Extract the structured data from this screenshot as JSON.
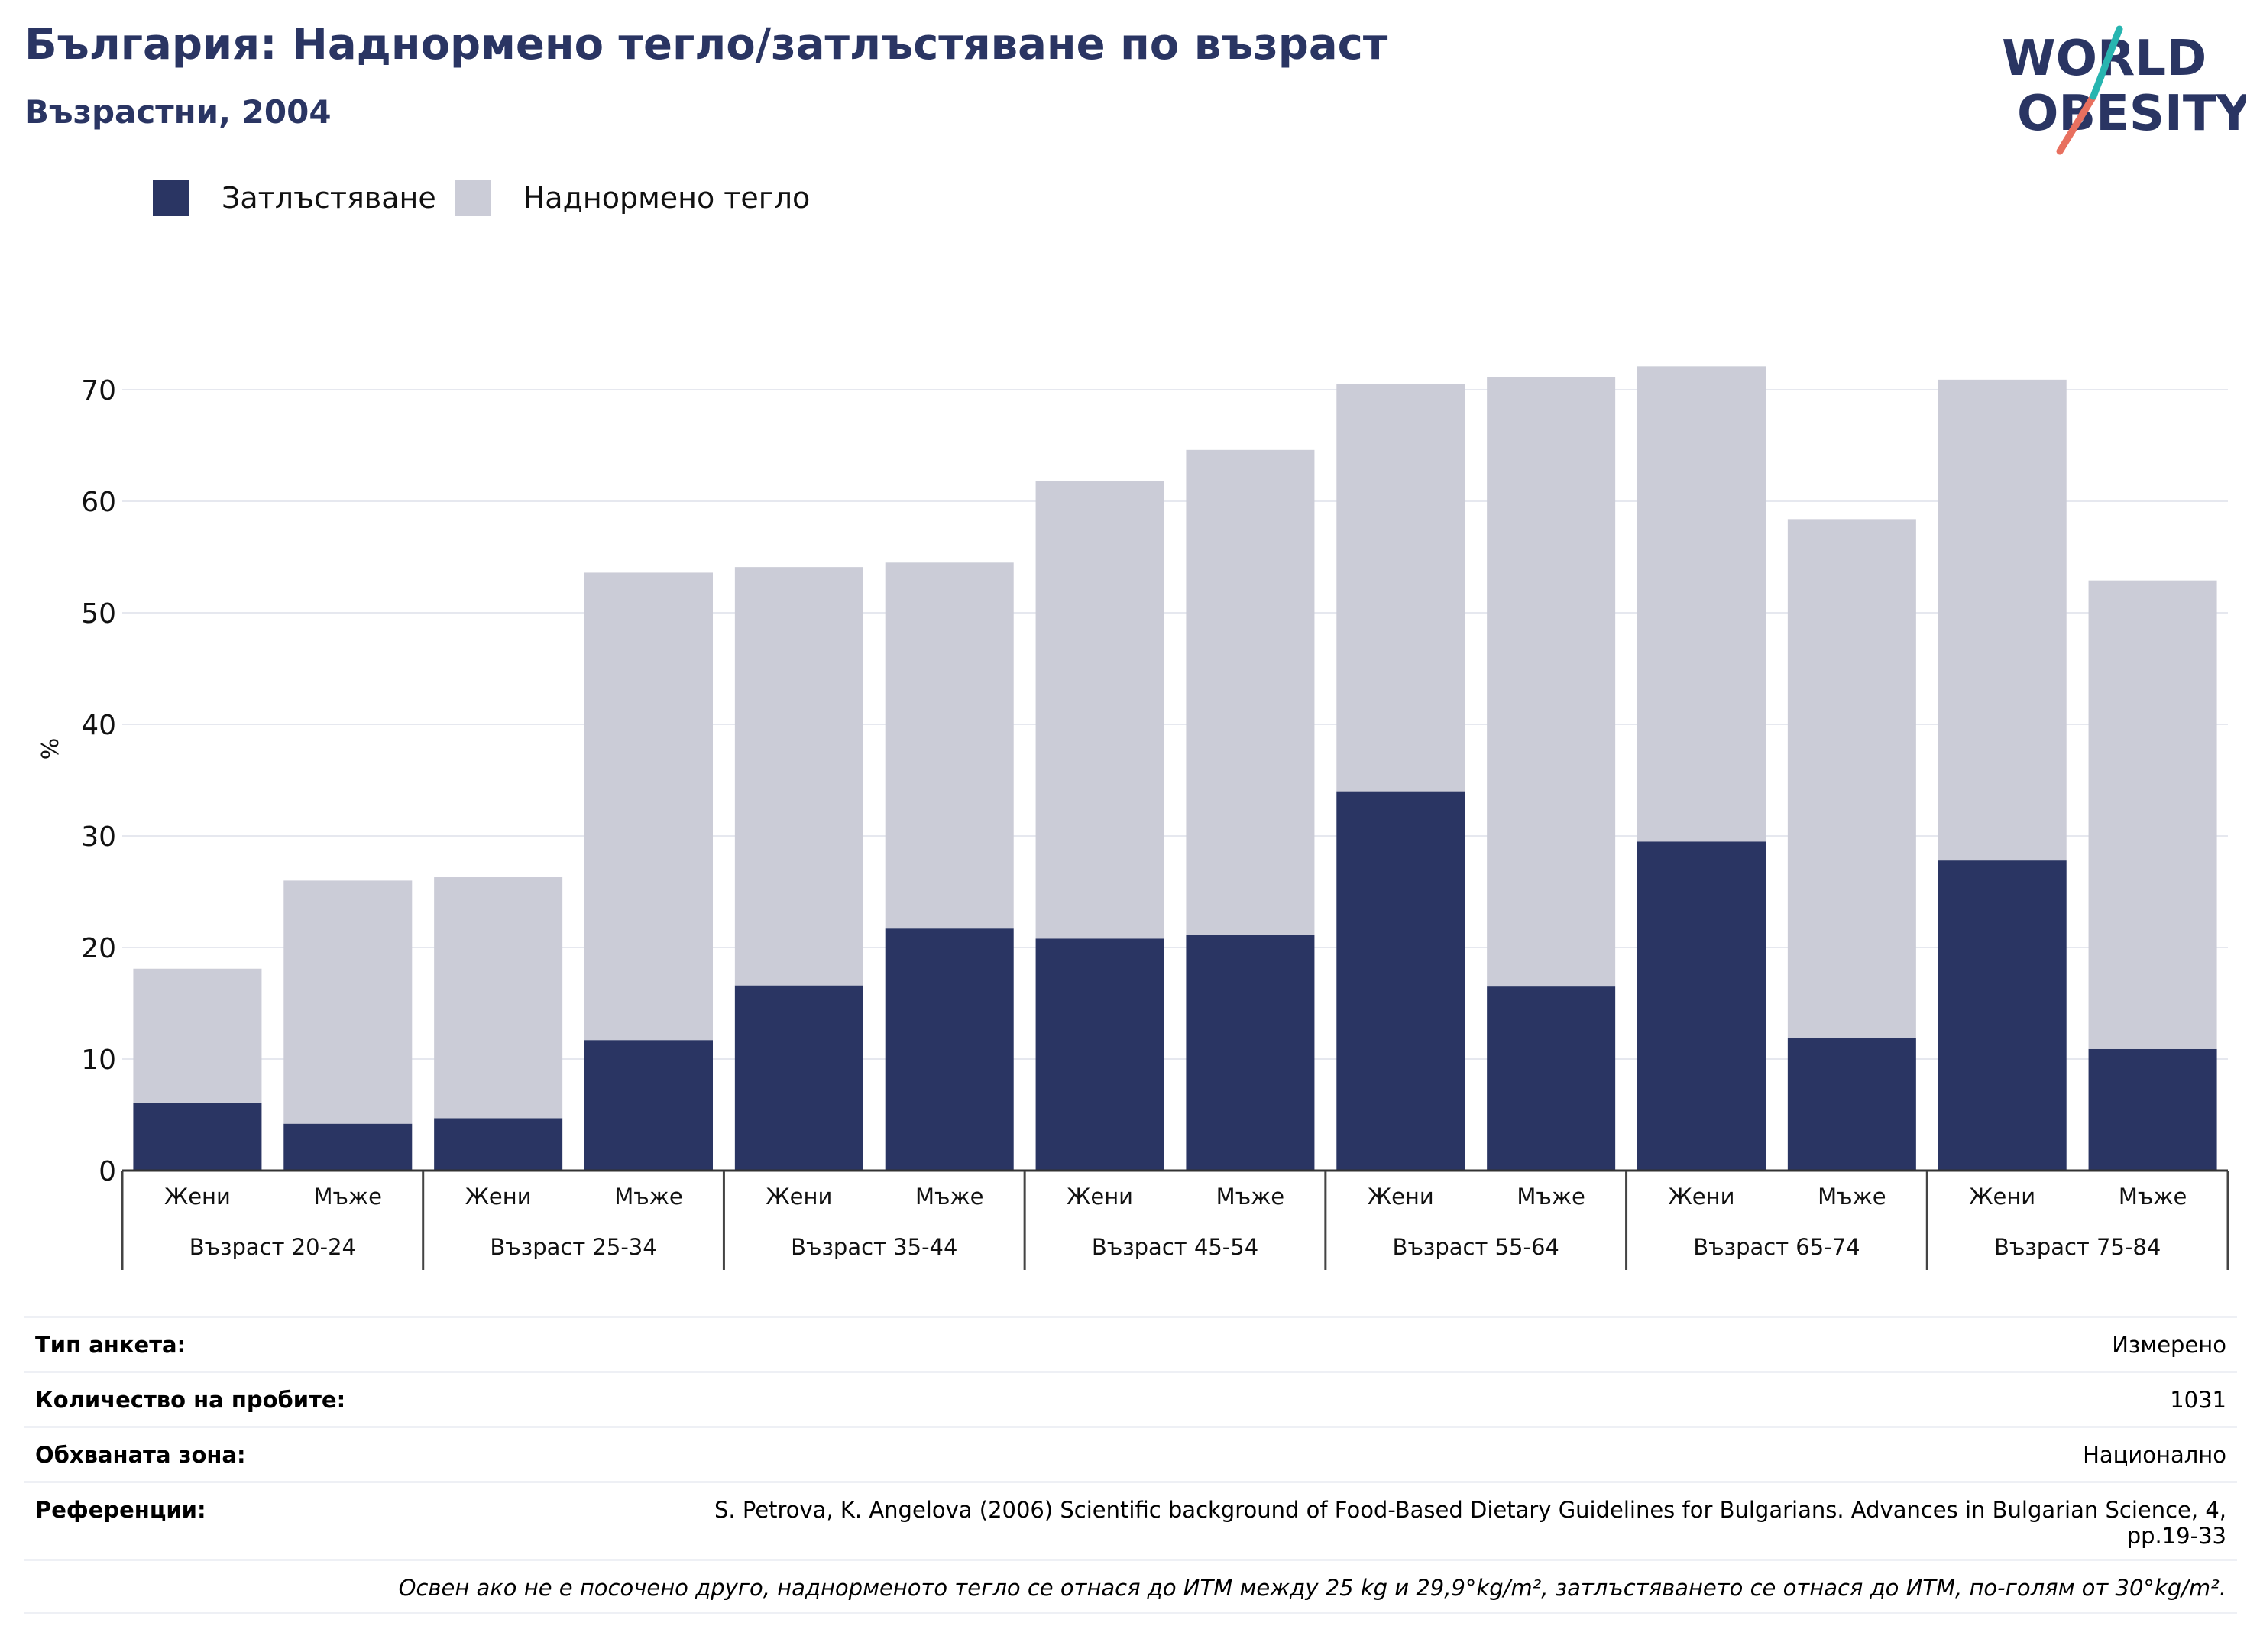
{
  "header": {
    "title": "България: Наднормено тегло/затлъстяване по възраст",
    "subtitle": "Възрастни, 2004"
  },
  "logo": {
    "line1": "WORLD",
    "line2": "OBESITY"
  },
  "colors": {
    "obesity": "#2a3563",
    "overweight": "#cbccd7",
    "title": "#2a3563",
    "grid": "#e6e8ef"
  },
  "legend": {
    "obesity_label": "Затлъстяване",
    "overweight_label": "Наднормено тегло"
  },
  "chart_data": {
    "type": "bar",
    "stacked": true,
    "ylabel": "%",
    "ylim": [
      0,
      75
    ],
    "yticks": [
      0,
      10,
      20,
      30,
      40,
      50,
      60,
      70
    ],
    "grid": true,
    "legend_position": "top-left",
    "groups": [
      "Възраст 20-24",
      "Възраст 25-34",
      "Възраст 35-44",
      "Възраст 45-54",
      "Възраст 55-64",
      "Възраст 65-74",
      "Възраст 75-84"
    ],
    "sexes": [
      "Жени",
      "Мъже"
    ],
    "series": [
      {
        "name": "Затлъстяване",
        "values": [
          6.1,
          4.2,
          4.7,
          11.7,
          16.6,
          21.7,
          20.8,
          21.1,
          34.0,
          16.5,
          29.5,
          11.9,
          27.8,
          10.9
        ]
      },
      {
        "name": "Наднормено тегло",
        "values": [
          12.0,
          21.8,
          21.6,
          41.9,
          37.5,
          32.8,
          41.0,
          43.5,
          36.5,
          54.6,
          42.6,
          46.5,
          43.1,
          42.0
        ]
      }
    ]
  },
  "info": {
    "survey_type_label": "Тип анкета:",
    "survey_type_value": "Измерено",
    "sample_label": "Количество на пробите:",
    "sample_value": "1031",
    "area_label": "Обхваната зона:",
    "area_value": "Национално",
    "refs_label": "Референции:",
    "refs_value_1": "S. Petrova, K. Angelova (2006) Scientific background of Food-Based Dietary Guidelines for Bulgarians. Advances in Bulgarian Science, 4,",
    "refs_value_2": "pp.19-33",
    "note": "Освен ако не е посочено друго, наднорменото тегло се отнася до ИТМ между 25 kg и 29,9°kg/m², затлъстяването се отнася до ИТМ, по-голям от 30°kg/m²."
  }
}
